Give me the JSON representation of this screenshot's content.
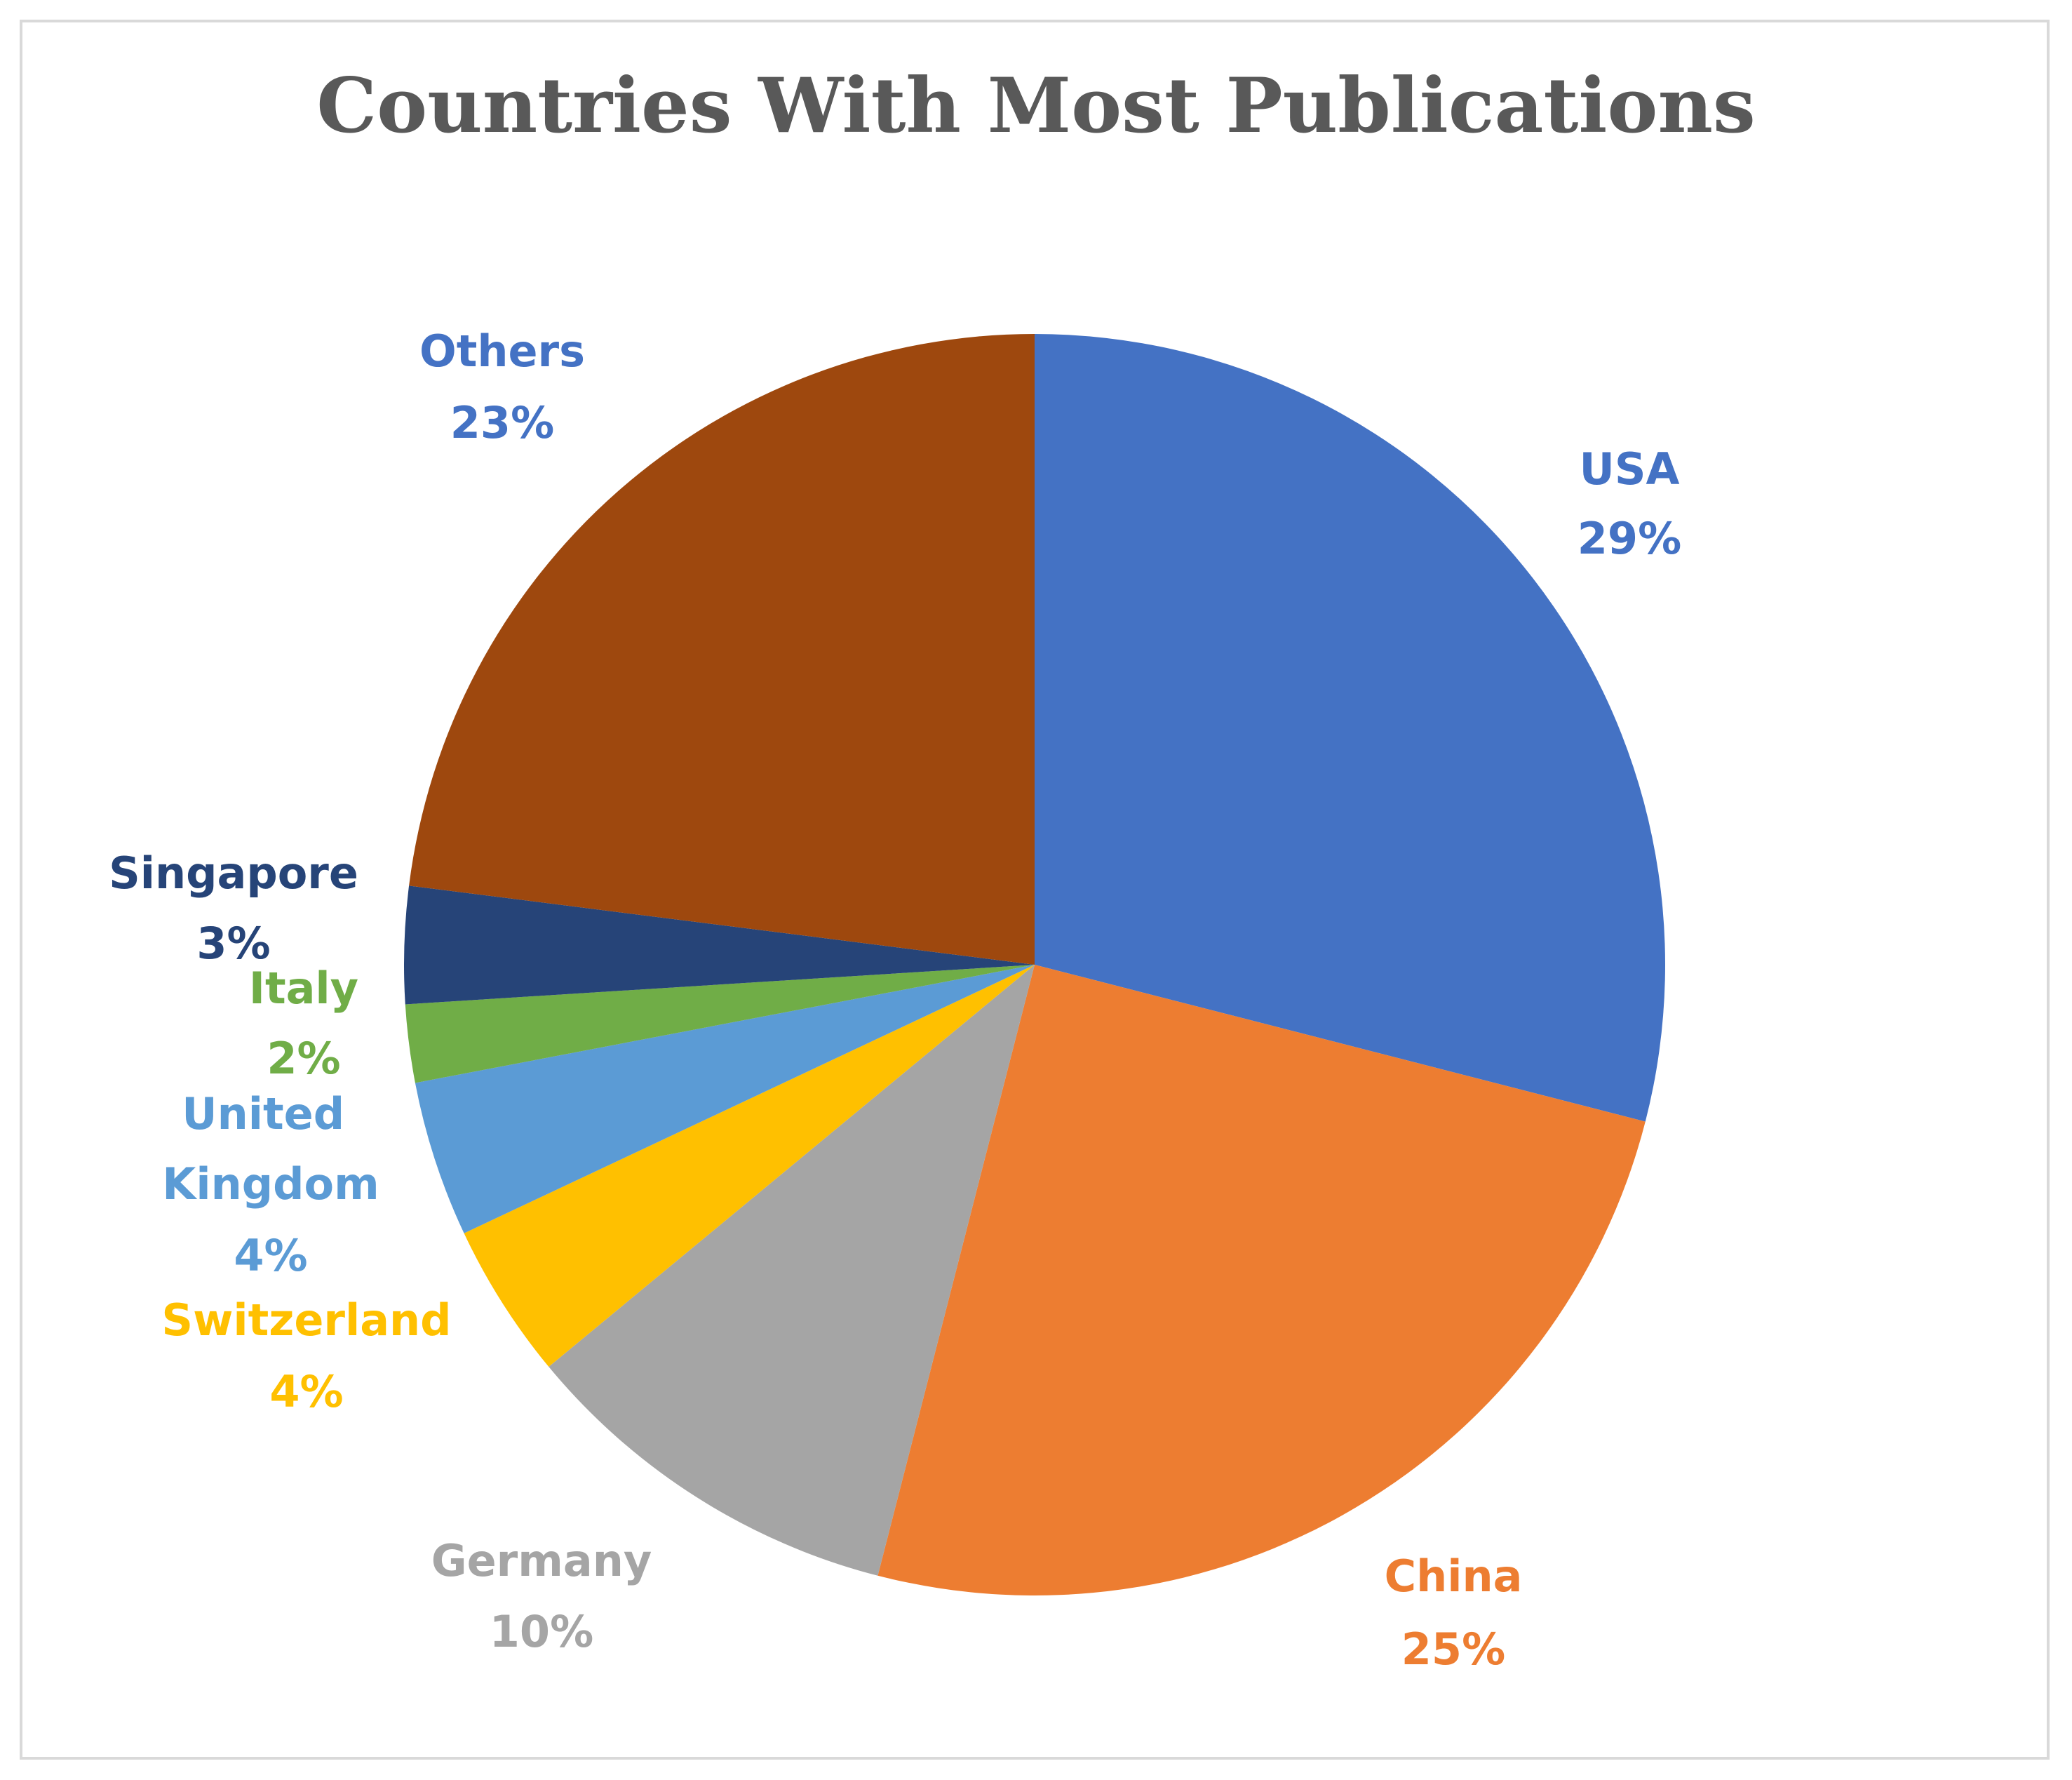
{
  "chart_data": {
    "type": "pie",
    "title": "Countries With Most Publications",
    "categories": [
      "USA",
      "China",
      "Germany",
      "Switzerland",
      "United Kingdom",
      "Italy",
      "Singapore",
      "Others"
    ],
    "values": [
      29,
      25,
      10,
      4,
      4,
      2,
      3,
      23
    ],
    "value_labels": [
      "29%",
      "25%",
      "10%",
      "4%",
      "4%",
      "2%",
      "3%",
      "23%"
    ],
    "colors": [
      "#4472c4",
      "#ed7d31",
      "#a5a5a5",
      "#ffc000",
      "#5b9bd5",
      "#70ad47",
      "#264478",
      "#9e480e"
    ],
    "label_colors": [
      "#4472c4",
      "#ed7d31",
      "#a5a5a5",
      "#ffc000",
      "#5b9bd5",
      "#70ad47",
      "#264478",
      "#4472c4"
    ]
  }
}
